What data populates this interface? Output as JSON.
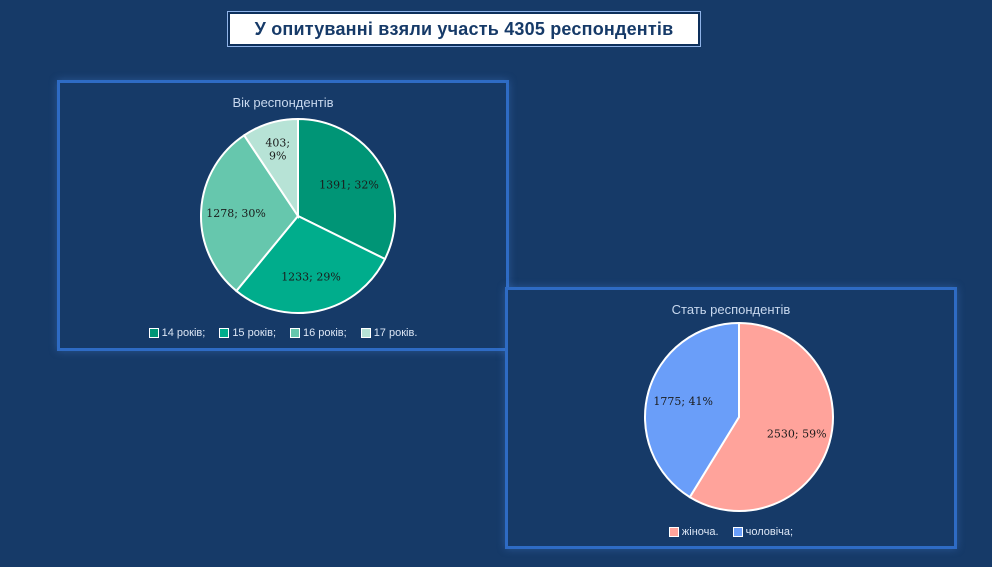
{
  "page": {
    "title": "У опитуванні взяли участь 4305 респондентів"
  },
  "chart_data": [
    {
      "type": "pie",
      "title": "Вік респондентів",
      "legend_position": "bottom",
      "categories": [
        "14 років;",
        "15 років;",
        "16 років;",
        "17 років."
      ],
      "values": [
        1391,
        1233,
        1278,
        403
      ],
      "labels": [
        "1391; 32%",
        "1233; 29%",
        "1278; 30%",
        "403;\n9%"
      ],
      "colors": [
        "#009576",
        "#00ad8c",
        "#66c7ad",
        "#b7e3d6"
      ]
    },
    {
      "type": "pie",
      "title": "Стать респондентів",
      "legend_position": "bottom",
      "categories": [
        "жіноча.",
        "чоловіча;"
      ],
      "values": [
        2530,
        1775
      ],
      "labels": [
        "2530; 59%",
        "1775; 41%"
      ],
      "colors": [
        "#ffa39b",
        "#6a9ef9"
      ]
    }
  ]
}
